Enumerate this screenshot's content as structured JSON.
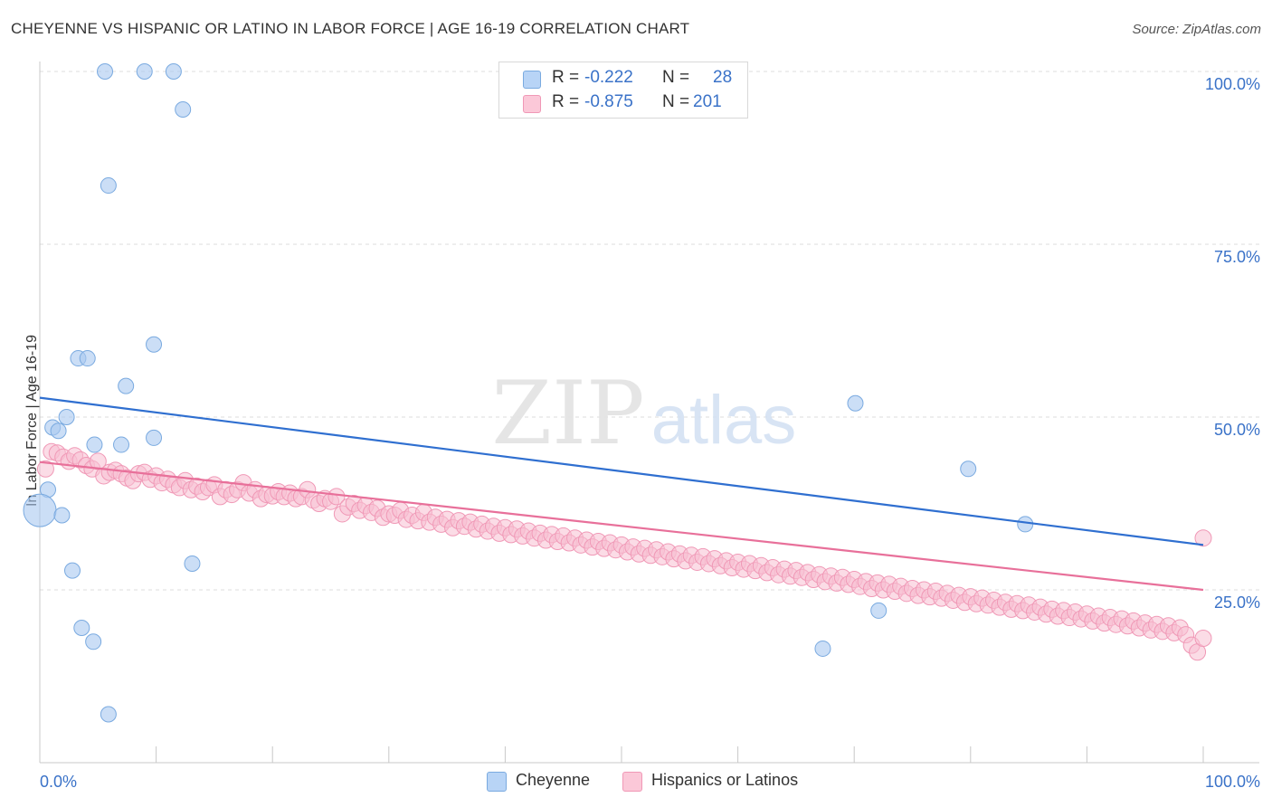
{
  "title": "CHEYENNE VS HISPANIC OR LATINO IN LABOR FORCE | AGE 16-19 CORRELATION CHART",
  "source": "Source: ZipAtlas.com",
  "watermark": {
    "zip": "ZIP",
    "atlas": "atlas"
  },
  "legend_stats": {
    "r_label": "R =",
    "n_label": "N =",
    "rows": [
      {
        "r": "-0.222",
        "n": "28"
      },
      {
        "r": "-0.875",
        "n": "201"
      }
    ]
  },
  "chart_data": {
    "type": "scatter",
    "title": "CHEYENNE VS HISPANIC OR LATINO IN LABOR FORCE | AGE 16-19 CORRELATION CHART",
    "ylabel": "In Labor Force | Age 16-19",
    "xlabel": "",
    "xlim": [
      0,
      100
    ],
    "ylim": [
      0,
      102
    ],
    "x_tick_labels": [
      {
        "value": 0,
        "label": "0.0%"
      },
      {
        "value": 100,
        "label": "100.0%"
      }
    ],
    "y_tick_labels": [
      {
        "value": 25,
        "label": "25.0%"
      },
      {
        "value": 50,
        "label": "50.0%"
      },
      {
        "value": 75,
        "label": "75.0%"
      },
      {
        "value": 100,
        "label": "100.0%"
      }
    ],
    "grid": true,
    "legend_position": "bottom",
    "series": [
      {
        "name": "Cheyenne",
        "color": "#a8c8f0",
        "stroke": "#7aaae0",
        "trend_color": "#2f6fd0",
        "trend": {
          "x": [
            0,
            100
          ],
          "y": [
            52.8,
            31.5
          ]
        },
        "points": [
          [
            5.6,
            100
          ],
          [
            9.0,
            100
          ],
          [
            11.5,
            100
          ],
          [
            12.3,
            94.5
          ],
          [
            5.9,
            83.5
          ],
          [
            9.8,
            60.5
          ],
          [
            3.3,
            58.5
          ],
          [
            4.1,
            58.5
          ],
          [
            7.4,
            54.5
          ],
          [
            1.1,
            48.5
          ],
          [
            1.6,
            48
          ],
          [
            2.3,
            50
          ],
          [
            4.7,
            46
          ],
          [
            7.0,
            46
          ],
          [
            9.8,
            47
          ],
          [
            0.7,
            39.5
          ],
          [
            0,
            36.5
          ],
          [
            1.9,
            35.8
          ],
          [
            2.8,
            27.8
          ],
          [
            13.1,
            28.8
          ],
          [
            3.6,
            19.5
          ],
          [
            4.6,
            17.5
          ],
          [
            5.9,
            7
          ],
          [
            67.3,
            16.5
          ],
          [
            72.1,
            22
          ],
          [
            70.1,
            52
          ],
          [
            79.8,
            42.5
          ],
          [
            84.7,
            34.5
          ]
        ],
        "big_point_index": 16
      },
      {
        "name": "Hispanics or Latinos",
        "color": "#f8c0d2",
        "stroke": "#f098b6",
        "trend_color": "#e8709a",
        "trend": {
          "x": [
            0,
            100
          ],
          "y": [
            43.5,
            25.0
          ]
        },
        "points": [
          [
            0.5,
            42.5
          ],
          [
            1.0,
            45.0
          ],
          [
            1.5,
            44.8
          ],
          [
            2.0,
            44.2
          ],
          [
            2.5,
            43.6
          ],
          [
            3.0,
            44.4
          ],
          [
            3.5,
            43.8
          ],
          [
            4.0,
            43.0
          ],
          [
            4.5,
            42.5
          ],
          [
            5.0,
            43.6
          ],
          [
            5.5,
            41.5
          ],
          [
            6.0,
            42.0
          ],
          [
            6.5,
            42.3
          ],
          [
            7.0,
            41.8
          ],
          [
            7.5,
            41.2
          ],
          [
            8.0,
            40.8
          ],
          [
            8.5,
            41.8
          ],
          [
            9.0,
            42.0
          ],
          [
            9.5,
            41.0
          ],
          [
            10.0,
            41.5
          ],
          [
            10.5,
            40.5
          ],
          [
            11.0,
            41.0
          ],
          [
            11.5,
            40.2
          ],
          [
            12.0,
            39.8
          ],
          [
            12.5,
            40.8
          ],
          [
            13.0,
            39.5
          ],
          [
            13.5,
            40.0
          ],
          [
            14.0,
            39.2
          ],
          [
            14.5,
            39.8
          ],
          [
            15.0,
            40.2
          ],
          [
            15.5,
            38.5
          ],
          [
            16.0,
            39.5
          ],
          [
            16.5,
            38.8
          ],
          [
            17.0,
            39.5
          ],
          [
            17.5,
            40.5
          ],
          [
            18.0,
            39.0
          ],
          [
            18.5,
            39.5
          ],
          [
            19.0,
            38.2
          ],
          [
            19.5,
            38.8
          ],
          [
            20.0,
            38.6
          ],
          [
            20.5,
            39.2
          ],
          [
            21.0,
            38.5
          ],
          [
            21.5,
            39.0
          ],
          [
            22.0,
            38.2
          ],
          [
            22.5,
            38.5
          ],
          [
            23.0,
            39.5
          ],
          [
            23.5,
            38.0
          ],
          [
            24.0,
            37.5
          ],
          [
            24.5,
            38.2
          ],
          [
            25.0,
            37.8
          ],
          [
            25.5,
            38.5
          ],
          [
            26.0,
            36.0
          ],
          [
            26.5,
            37.0
          ],
          [
            27.0,
            37.5
          ],
          [
            27.5,
            36.5
          ],
          [
            28.0,
            37.2
          ],
          [
            28.5,
            36.2
          ],
          [
            29.0,
            36.8
          ],
          [
            29.5,
            35.5
          ],
          [
            30.0,
            36.0
          ],
          [
            30.5,
            35.8
          ],
          [
            31.0,
            36.5
          ],
          [
            31.5,
            35.2
          ],
          [
            32.0,
            35.8
          ],
          [
            32.5,
            35.0
          ],
          [
            33.0,
            36.2
          ],
          [
            33.5,
            34.8
          ],
          [
            34.0,
            35.5
          ],
          [
            34.5,
            34.5
          ],
          [
            35.0,
            35.2
          ],
          [
            35.5,
            34.0
          ],
          [
            36.0,
            35.0
          ],
          [
            36.5,
            34.2
          ],
          [
            37.0,
            34.8
          ],
          [
            37.5,
            33.8
          ],
          [
            38.0,
            34.5
          ],
          [
            38.5,
            33.5
          ],
          [
            39.0,
            34.2
          ],
          [
            39.5,
            33.2
          ],
          [
            40.0,
            34.0
          ],
          [
            40.5,
            33.0
          ],
          [
            41.0,
            33.8
          ],
          [
            41.5,
            32.8
          ],
          [
            42.0,
            33.5
          ],
          [
            42.5,
            32.5
          ],
          [
            43.0,
            33.2
          ],
          [
            43.5,
            32.2
          ],
          [
            44.0,
            33.0
          ],
          [
            44.5,
            32.0
          ],
          [
            45.0,
            32.8
          ],
          [
            45.5,
            31.8
          ],
          [
            46.0,
            32.5
          ],
          [
            46.5,
            31.5
          ],
          [
            47.0,
            32.2
          ],
          [
            47.5,
            31.2
          ],
          [
            48.0,
            32.0
          ],
          [
            48.5,
            31.0
          ],
          [
            49.0,
            31.8
          ],
          [
            49.5,
            30.8
          ],
          [
            50.0,
            31.5
          ],
          [
            50.5,
            30.5
          ],
          [
            51.0,
            31.2
          ],
          [
            51.5,
            30.2
          ],
          [
            52.0,
            31.0
          ],
          [
            52.5,
            30.0
          ],
          [
            53.0,
            30.8
          ],
          [
            53.5,
            29.8
          ],
          [
            54.0,
            30.5
          ],
          [
            54.5,
            29.5
          ],
          [
            55.0,
            30.2
          ],
          [
            55.5,
            29.2
          ],
          [
            56.0,
            30.0
          ],
          [
            56.5,
            29.0
          ],
          [
            57.0,
            29.8
          ],
          [
            57.5,
            28.8
          ],
          [
            58.0,
            29.5
          ],
          [
            58.5,
            28.5
          ],
          [
            59.0,
            29.2
          ],
          [
            59.5,
            28.2
          ],
          [
            60.0,
            29.0
          ],
          [
            60.5,
            28.0
          ],
          [
            61.0,
            28.8
          ],
          [
            61.5,
            27.8
          ],
          [
            62.0,
            28.5
          ],
          [
            62.5,
            27.5
          ],
          [
            63.0,
            28.2
          ],
          [
            63.5,
            27.2
          ],
          [
            64.0,
            28.0
          ],
          [
            64.5,
            27.0
          ],
          [
            65.0,
            27.8
          ],
          [
            65.5,
            26.8
          ],
          [
            66.0,
            27.5
          ],
          [
            66.5,
            26.5
          ],
          [
            67.0,
            27.2
          ],
          [
            67.5,
            26.2
          ],
          [
            68.0,
            27.0
          ],
          [
            68.5,
            26.0
          ],
          [
            69.0,
            26.8
          ],
          [
            69.5,
            25.8
          ],
          [
            70.0,
            26.5
          ],
          [
            70.5,
            25.5
          ],
          [
            71.0,
            26.2
          ],
          [
            71.5,
            25.2
          ],
          [
            72.0,
            26.0
          ],
          [
            72.5,
            25.0
          ],
          [
            73.0,
            25.8
          ],
          [
            73.5,
            24.8
          ],
          [
            74.0,
            25.5
          ],
          [
            74.5,
            24.5
          ],
          [
            75.0,
            25.2
          ],
          [
            75.5,
            24.2
          ],
          [
            76.0,
            25.0
          ],
          [
            76.5,
            24.0
          ],
          [
            77.0,
            24.8
          ],
          [
            77.5,
            23.8
          ],
          [
            78.0,
            24.5
          ],
          [
            78.5,
            23.5
          ],
          [
            79.0,
            24.2
          ],
          [
            79.5,
            23.2
          ],
          [
            80.0,
            24.0
          ],
          [
            80.5,
            23.0
          ],
          [
            81.0,
            23.8
          ],
          [
            81.5,
            22.8
          ],
          [
            82.0,
            23.5
          ],
          [
            82.5,
            22.5
          ],
          [
            83.0,
            23.2
          ],
          [
            83.5,
            22.2
          ],
          [
            84.0,
            23.0
          ],
          [
            84.5,
            22.0
          ],
          [
            85.0,
            22.8
          ],
          [
            85.5,
            21.8
          ],
          [
            86.0,
            22.5
          ],
          [
            86.5,
            21.5
          ],
          [
            87.0,
            22.2
          ],
          [
            87.5,
            21.2
          ],
          [
            88.0,
            22.0
          ],
          [
            88.5,
            21.0
          ],
          [
            89.0,
            21.8
          ],
          [
            89.5,
            20.8
          ],
          [
            90.0,
            21.5
          ],
          [
            90.5,
            20.5
          ],
          [
            91.0,
            21.2
          ],
          [
            91.5,
            20.2
          ],
          [
            92.0,
            21.0
          ],
          [
            92.5,
            20.0
          ],
          [
            93.0,
            20.8
          ],
          [
            93.5,
            19.8
          ],
          [
            94.0,
            20.5
          ],
          [
            94.5,
            19.5
          ],
          [
            95.0,
            20.2
          ],
          [
            95.5,
            19.2
          ],
          [
            96.0,
            20.0
          ],
          [
            96.5,
            19.0
          ],
          [
            97.0,
            19.8
          ],
          [
            97.5,
            18.8
          ],
          [
            98.0,
            19.5
          ],
          [
            98.5,
            18.5
          ],
          [
            99.0,
            17.0
          ],
          [
            99.5,
            16.0
          ],
          [
            100.0,
            18.0
          ],
          [
            100.0,
            32.5
          ]
        ]
      }
    ]
  },
  "bottom_legend": [
    {
      "label": "Cheyenne",
      "color": "#b8d4f6",
      "stroke": "#7aaae0"
    },
    {
      "label": "Hispanics or Latinos",
      "color": "#fbc8d8",
      "stroke": "#f098b6"
    }
  ]
}
